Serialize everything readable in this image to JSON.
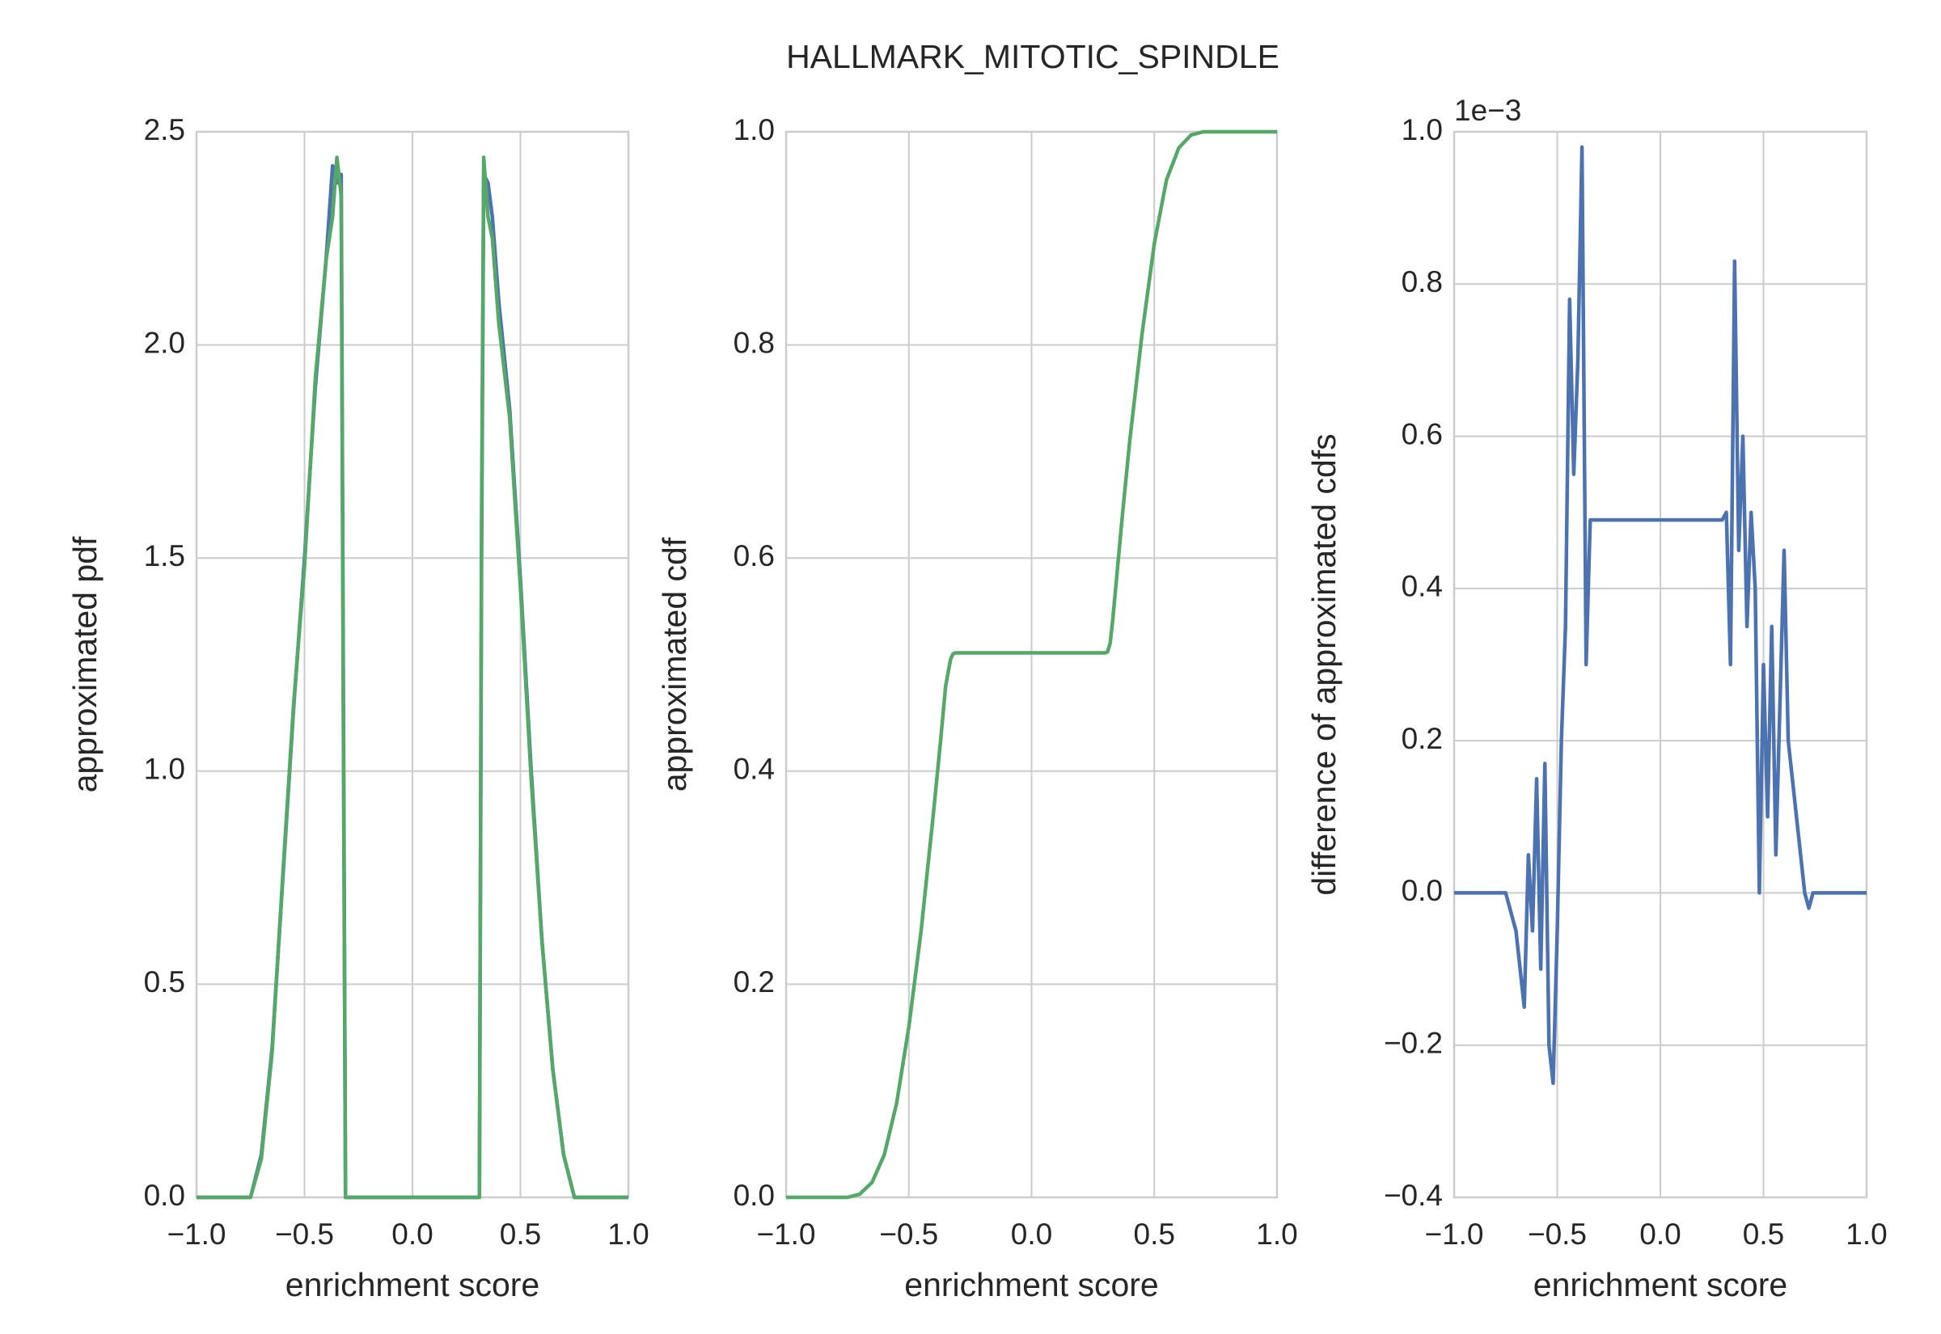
{
  "title": "HALLMARK_MITOTIC_SPINDLE",
  "chart_data": [
    {
      "type": "line",
      "xlabel": "enrichment score",
      "ylabel": "approximated pdf",
      "x": [
        -1,
        -0.8,
        -0.75,
        -0.7,
        -0.65,
        -0.6,
        -0.55,
        -0.5,
        -0.45,
        -0.4,
        -0.37,
        -0.35,
        -0.33,
        -0.32,
        -0.31,
        -0.3,
        0,
        0.3,
        0.31,
        0.32,
        0.33,
        0.35,
        0.37,
        0.4,
        0.45,
        0.5,
        0.55,
        0.6,
        0.65,
        0.7,
        0.75,
        0.8,
        1
      ],
      "series": [
        {
          "color": "#4c72b0",
          "values": [
            0,
            0,
            0,
            0.1,
            0.35,
            0.75,
            1.15,
            1.5,
            1.9,
            2.2,
            2.42,
            2.38,
            2.4,
            1.2,
            0,
            0,
            0,
            0,
            0,
            1.5,
            2.4,
            2.38,
            2.3,
            2.1,
            1.85,
            1.45,
            1.0,
            0.6,
            0.3,
            0.1,
            0,
            0,
            0
          ]
        },
        {
          "color": "#55a868",
          "values": [
            0,
            0,
            0,
            0.09,
            0.34,
            0.76,
            1.16,
            1.48,
            1.92,
            2.2,
            2.3,
            2.44,
            2.35,
            1.1,
            0,
            0,
            0,
            0,
            0,
            1.6,
            2.44,
            2.3,
            2.25,
            2.05,
            1.83,
            1.43,
            0.98,
            0.6,
            0.3,
            0.1,
            0,
            0,
            0
          ]
        }
      ],
      "xlim": [
        -1,
        1
      ],
      "xticks": [
        {
          "value": -1,
          "label": "−1.0"
        },
        {
          "value": -0.5,
          "label": "−0.5"
        },
        {
          "value": 0,
          "label": "0.0"
        },
        0.5,
        {
          "value": 1,
          "label": "1.0"
        }
      ],
      "ylim": [
        0,
        2.5
      ],
      "yticks": [
        {
          "value": 0,
          "label": "0.0"
        },
        0.5,
        {
          "value": 1,
          "label": "1.0"
        },
        1.5,
        {
          "value": 2,
          "label": "2.0"
        },
        2.5
      ],
      "grid": true
    },
    {
      "type": "line",
      "xlabel": "enrichment score",
      "ylabel": "approximated cdf",
      "x": [
        -1,
        -0.8,
        -0.75,
        -0.7,
        -0.65,
        -0.6,
        -0.55,
        -0.5,
        -0.45,
        -0.4,
        -0.37,
        -0.35,
        -0.33,
        -0.32,
        -0.31,
        -0.3,
        0,
        0.3,
        0.31,
        0.32,
        0.33,
        0.35,
        0.37,
        0.4,
        0.45,
        0.5,
        0.55,
        0.6,
        0.65,
        0.7,
        0.75,
        0.8,
        1
      ],
      "series": [
        {
          "color": "#55a868",
          "values": [
            0,
            0,
            0,
            0.003,
            0.014,
            0.04,
            0.088,
            0.16,
            0.25,
            0.36,
            0.43,
            0.48,
            0.505,
            0.51,
            0.511,
            0.511,
            0.511,
            0.511,
            0.512,
            0.52,
            0.54,
            0.59,
            0.64,
            0.71,
            0.81,
            0.895,
            0.955,
            0.985,
            0.997,
            1,
            1,
            1,
            1
          ]
        }
      ],
      "xlim": [
        -1,
        1
      ],
      "xticks": [
        {
          "value": -1,
          "label": "−1.0"
        },
        {
          "value": -0.5,
          "label": "−0.5"
        },
        {
          "value": 0,
          "label": "0.0"
        },
        0.5,
        {
          "value": 1,
          "label": "1.0"
        }
      ],
      "ylim": [
        0,
        1
      ],
      "yticks": [
        {
          "value": 0,
          "label": "0.0"
        },
        0.2,
        0.4,
        0.6,
        0.8,
        {
          "value": 1,
          "label": "1.0"
        }
      ],
      "grid": true
    },
    {
      "type": "line",
      "xlabel": "enrichment score",
      "ylabel": "difference of approximated cdfs",
      "y_offset_label": "1e−3",
      "x": [
        -1,
        -0.75,
        -0.72,
        -0.7,
        -0.68,
        -0.66,
        -0.64,
        -0.62,
        -0.6,
        -0.58,
        -0.56,
        -0.54,
        -0.52,
        -0.5,
        -0.48,
        -0.46,
        -0.44,
        -0.42,
        -0.4,
        -0.38,
        -0.36,
        -0.34,
        -0.32,
        -0.3,
        0,
        0.3,
        0.32,
        0.34,
        0.36,
        0.38,
        0.4,
        0.42,
        0.44,
        0.46,
        0.48,
        0.5,
        0.52,
        0.54,
        0.56,
        0.58,
        0.6,
        0.62,
        0.64,
        0.66,
        0.68,
        0.7,
        0.72,
        0.74,
        1
      ],
      "series": [
        {
          "color": "#4c72b0",
          "values": [
            0,
            0,
            -0.03,
            -0.05,
            -0.1,
            -0.15,
            0.05,
            -0.05,
            0.15,
            -0.1,
            0.17,
            -0.2,
            -0.25,
            -0.05,
            0.2,
            0.35,
            0.78,
            0.55,
            0.7,
            0.98,
            0.3,
            0.49,
            0.49,
            0.49,
            0.49,
            0.49,
            0.5,
            0.3,
            0.83,
            0.45,
            0.6,
            0.35,
            0.5,
            0.4,
            0.0,
            0.3,
            0.1,
            0.35,
            0.05,
            0.25,
            0.45,
            0.2,
            0.15,
            0.1,
            0.05,
            0.0,
            -0.02,
            0.0,
            0
          ]
        }
      ],
      "xlim": [
        -1,
        1
      ],
      "xticks": [
        {
          "value": -1,
          "label": "−1.0"
        },
        {
          "value": -0.5,
          "label": "−0.5"
        },
        {
          "value": 0,
          "label": "0.0"
        },
        0.5,
        {
          "value": 1,
          "label": "1.0"
        }
      ],
      "ylim": [
        -0.4,
        1
      ],
      "yticks": [
        {
          "value": -0.4,
          "label": "−0.4"
        },
        {
          "value": -0.2,
          "label": "−0.2"
        },
        {
          "value": 0,
          "label": "0.0"
        },
        0.2,
        0.4,
        0.6,
        0.8,
        {
          "value": 1,
          "label": "1.0"
        }
      ],
      "grid": true
    }
  ]
}
